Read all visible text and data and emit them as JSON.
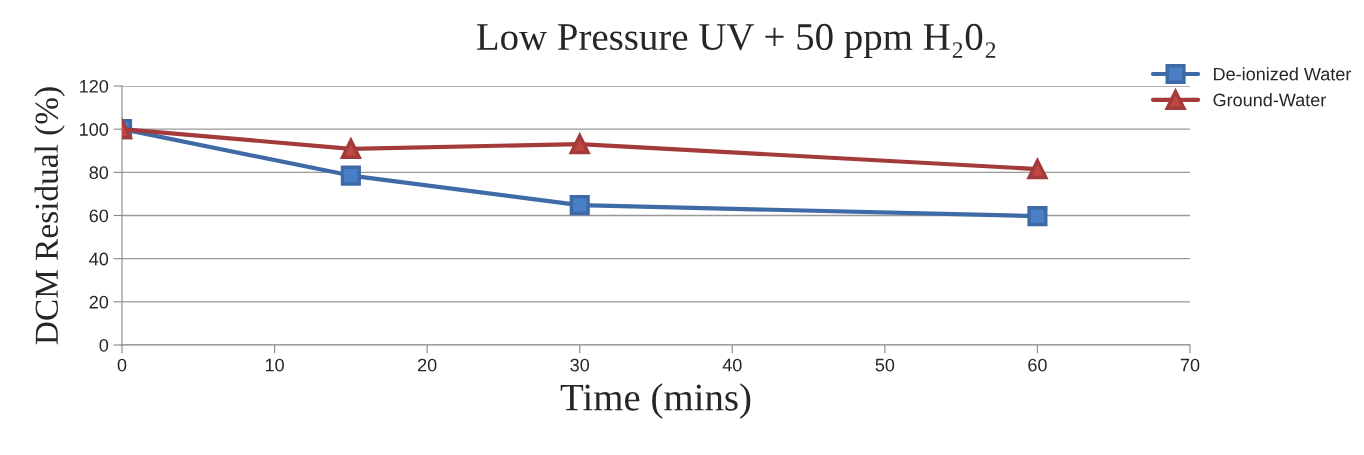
{
  "chart_data": {
    "type": "line",
    "title": "Low Pressure UV + 50 ppm H₂0₂",
    "xlabel": "Time (mins)",
    "ylabel": "DCM Residual (%)",
    "xlim": [
      0,
      70
    ],
    "xticks": [
      0,
      10,
      20,
      30,
      40,
      50,
      60,
      70
    ],
    "ylim": [
      0,
      120
    ],
    "yticks": [
      0,
      20,
      40,
      60,
      80,
      100,
      120
    ],
    "grid": "y",
    "legend": "top right",
    "series": [
      {
        "name": "De-ionized Water",
        "color": "#3e6aa6",
        "marker": "square",
        "x": [
          0,
          15,
          30,
          60
        ],
        "values": [
          100,
          78.5,
          64.8,
          59.7
        ]
      },
      {
        "name": "Ground-Water",
        "color": "#a23b39",
        "marker": "triangle",
        "x": [
          0,
          15,
          30,
          60
        ],
        "values": [
          100,
          90.9,
          93.1,
          81.5
        ]
      }
    ]
  }
}
